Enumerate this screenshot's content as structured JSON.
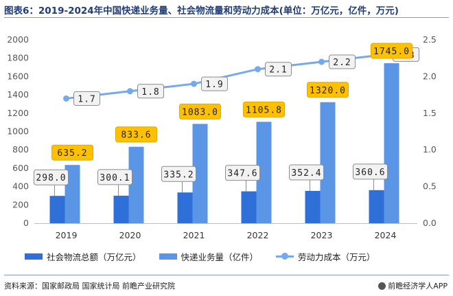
{
  "title": "图表6：2019-2024年中国快递业务量、社会物流量和劳动力成本(单位：万亿元，亿件，万元)",
  "source": "资料来源：国家邮政局 国家统计局 前瞻产业研究院",
  "brand": "前瞻经济学人APP",
  "colors": {
    "logistics": "#2f6fd8",
    "express": "#5b96e6",
    "labor": "#74a9eb",
    "express_label_bg": "#ffc000",
    "label_bg": "#f2f2f2",
    "label_border": "#8c8c8c",
    "axis_text": "#555555"
  },
  "chart_data": {
    "type": "bar",
    "title": "图表6：2019-2024年中国快递业务量、社会物流量和劳动力成本(单位：万亿元，亿件，万元)",
    "categories": [
      "2019",
      "2020",
      "2021",
      "2022",
      "2023",
      "2024"
    ],
    "series": [
      {
        "name": "社会物流总额（万亿元）",
        "axis": "left",
        "kind": "bar",
        "values": [
          298.0,
          300.1,
          335.2,
          347.6,
          352.4,
          360.6
        ],
        "labels": [
          "298.0",
          "300.1",
          "335.2",
          "347.6",
          "352.4",
          "360.6"
        ]
      },
      {
        "name": "快递业务量（亿件）",
        "axis": "left",
        "kind": "bar",
        "values": [
          635.2,
          833.6,
          1083.0,
          1105.8,
          1320.0,
          1745.0
        ],
        "labels": [
          "635.2",
          "833.6",
          "1083.0",
          "1105.8",
          "1320.0",
          "1745.0"
        ]
      },
      {
        "name": "劳动力成本（万元）",
        "axis": "right",
        "kind": "line",
        "values": [
          1.7,
          1.8,
          1.9,
          2.1,
          2.2,
          2.3
        ],
        "labels": [
          "1.7",
          "1.8",
          "1.9",
          "2.1",
          "2.2",
          "2.3"
        ]
      }
    ],
    "y_left": {
      "range": [
        0,
        2000
      ],
      "ticks": [
        "0",
        "200",
        "400",
        "600",
        "800",
        "1000",
        "1200",
        "1400",
        "1600",
        "1800",
        "2000"
      ]
    },
    "y_right": {
      "range": [
        0,
        2.5
      ],
      "ticks": [
        "0.0",
        "0.5",
        "1.0",
        "1.5",
        "2.0",
        "2.5"
      ]
    },
    "grid": false,
    "legend_position": "bottom"
  }
}
